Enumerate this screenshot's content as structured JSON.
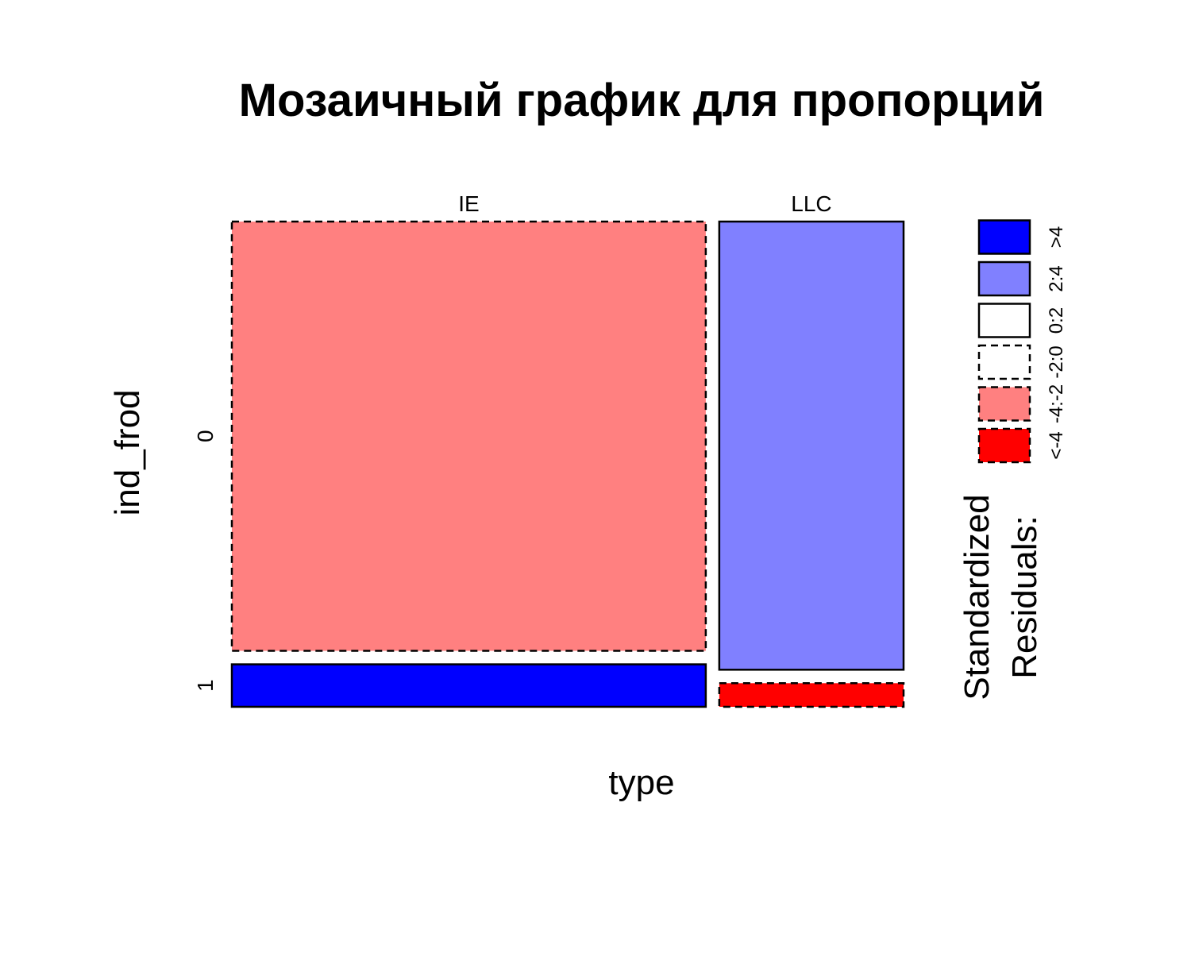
{
  "chart_data": {
    "type": "mosaic",
    "title": "Мозаичный график для пропорций",
    "xlabel": "type",
    "ylabel": "ind_frod",
    "x_categories": [
      "IE",
      "LLC"
    ],
    "y_categories": [
      "0",
      "1"
    ],
    "column_proportions": [
      0.72,
      0.28
    ],
    "cells": [
      {
        "x": "IE",
        "y": "0",
        "proportion": 0.91,
        "residual_class": "-4:-2"
      },
      {
        "x": "IE",
        "y": "1",
        "proportion": 0.09,
        "residual_class": ">4"
      },
      {
        "x": "LLC",
        "y": "0",
        "proportion": 0.95,
        "residual_class": "2:4"
      },
      {
        "x": "LLC",
        "y": "1",
        "proportion": 0.05,
        "residual_class": "<-4"
      }
    ],
    "legend": {
      "title_line1": "Standardized",
      "title_line2": "Residuals:",
      "position": "right",
      "entries": [
        {
          "label": "<-4",
          "color": "#ff0000",
          "dashed": true
        },
        {
          "label": "-4:-2",
          "color": "#ff8080",
          "dashed": true
        },
        {
          "label": "-2:0",
          "color": "#ffffff",
          "dashed": true
        },
        {
          "label": "0:2",
          "color": "#ffffff",
          "dashed": false
        },
        {
          "label": "2:4",
          "color": "#8080ff",
          "dashed": false
        },
        {
          "label": ">4",
          "color": "#0000ff",
          "dashed": false
        }
      ]
    }
  }
}
